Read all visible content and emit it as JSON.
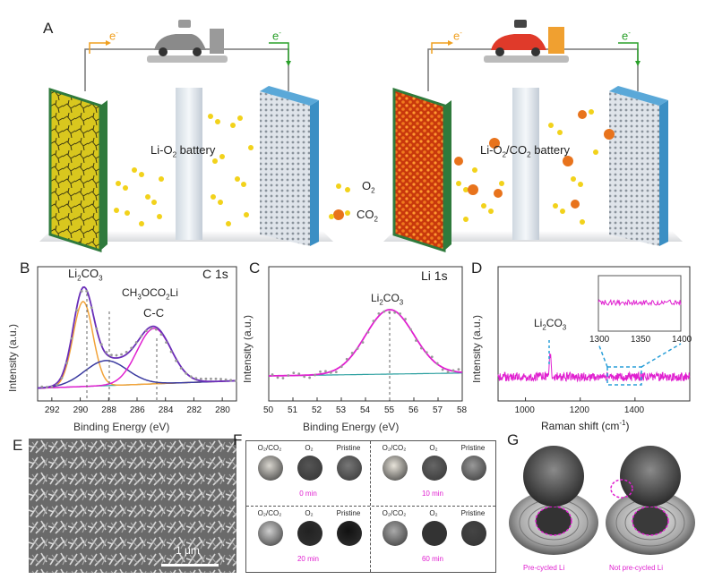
{
  "panels": {
    "a": {
      "letter": "A",
      "left_battery": "Li-O",
      "left_battery_sub": "2",
      "left_battery_tail": " battery",
      "right_battery": "Li-O",
      "right_battery_sub1": "2",
      "right_battery_mid": "/CO",
      "right_battery_sub2": "2",
      "right_battery_tail": " battery",
      "electron": "e",
      "legend_o2": "O",
      "legend_o2_sub": "2",
      "legend_co2": "CO",
      "legend_co2_sub": "2",
      "colors": {
        "o2": "#f2d21b",
        "co2": "#e8731c",
        "left_electrode": "#d9c71e",
        "right_electrode": "#d94a10",
        "cathode": "#3b8fc4",
        "green_frame": "#2f7a3c"
      }
    },
    "b": {
      "letter": "B",
      "tag": "C 1s",
      "peak1": "Li",
      "peak1_sub": "2",
      "peak1_tail": "CO",
      "peak1_sub2": "3",
      "peak2": "CH",
      "peak2_sub": "3",
      "peak2_mid": "OCO",
      "peak2_sub2": "2",
      "peak2_tail": "Li",
      "peak3": "C-C",
      "xlabel": "Binding Energy (eV)",
      "ylabel": "Intensity (a.u.)"
    },
    "c": {
      "letter": "C",
      "tag": "Li 1s",
      "peak": "Li",
      "peak_sub": "2",
      "peak_tail": "CO",
      "peak_sub2": "3",
      "xlabel": "Binding Energy (eV)",
      "ylabel": "Intensity (a.u.)"
    },
    "d": {
      "letter": "D",
      "peak": "Li",
      "peak_sub": "2",
      "peak_tail": "CO",
      "peak_sub2": "3",
      "xlabel_pre": "Raman shift (cm",
      "xlabel_sup": "-1",
      "xlabel_post": ")",
      "ylabel": "Intensity (a.u.)"
    },
    "e": {
      "letter": "E",
      "scale_bar": "1 μm"
    },
    "f": {
      "letter": "F",
      "blocks": [
        {
          "labels": [
            "O₂/CO₂",
            "O₂",
            "Pristine"
          ],
          "time": "0 min"
        },
        {
          "labels": [
            "O₂/CO₂",
            "O₂",
            "Pristine"
          ],
          "time": "10 min"
        },
        {
          "labels": [
            "O₂/CO₂",
            "O₂",
            "Pristine"
          ],
          "time": "20 min"
        },
        {
          "labels": [
            "O₂/CO₂",
            "O₂",
            "Pristine"
          ],
          "time": "60 min"
        }
      ]
    },
    "g": {
      "letter": "G",
      "left_caption": "Pre-cycled Li",
      "right_caption": "Not pre-cycled Li"
    }
  },
  "chart_data": [
    {
      "panel": "B",
      "type": "line",
      "title": "C 1s",
      "xlabel": "Binding Energy (eV)",
      "ylabel": "Intensity (a.u.)",
      "xlim": [
        293,
        279
      ],
      "xticks": [
        292,
        290,
        288,
        286,
        284,
        282,
        280
      ],
      "series": [
        {
          "name": "Li2CO3",
          "peak_center": 289.8,
          "color": "#f2a33a"
        },
        {
          "name": "CH3OCO2Li",
          "peak_center": 288.2,
          "color": "#3a3aa0"
        },
        {
          "name": "C-C",
          "peak_center": 284.8,
          "color": "#e020d0"
        },
        {
          "name": "envelope",
          "color": "#6a2fb8"
        }
      ]
    },
    {
      "panel": "C",
      "type": "line",
      "title": "Li 1s",
      "xlabel": "Binding Energy (eV)",
      "ylabel": "Intensity (a.u.)",
      "xlim": [
        50,
        58
      ],
      "xticks": [
        50,
        51,
        52,
        53,
        54,
        55,
        56,
        57,
        58
      ],
      "series": [
        {
          "name": "Li2CO3",
          "peak_center": 55.0,
          "color": "#e020d0"
        }
      ]
    },
    {
      "panel": "D",
      "type": "line",
      "xlabel": "Raman shift (cm-1)",
      "ylabel": "Intensity (a.u.)",
      "xlim": [
        900,
        1600
      ],
      "xticks": [
        1000,
        1200,
        1400
      ],
      "inset_xticks": [
        1300,
        1350,
        1400
      ],
      "series": [
        {
          "name": "Li2CO3",
          "peak_center": 1090,
          "color": "#e020d0"
        }
      ]
    }
  ]
}
